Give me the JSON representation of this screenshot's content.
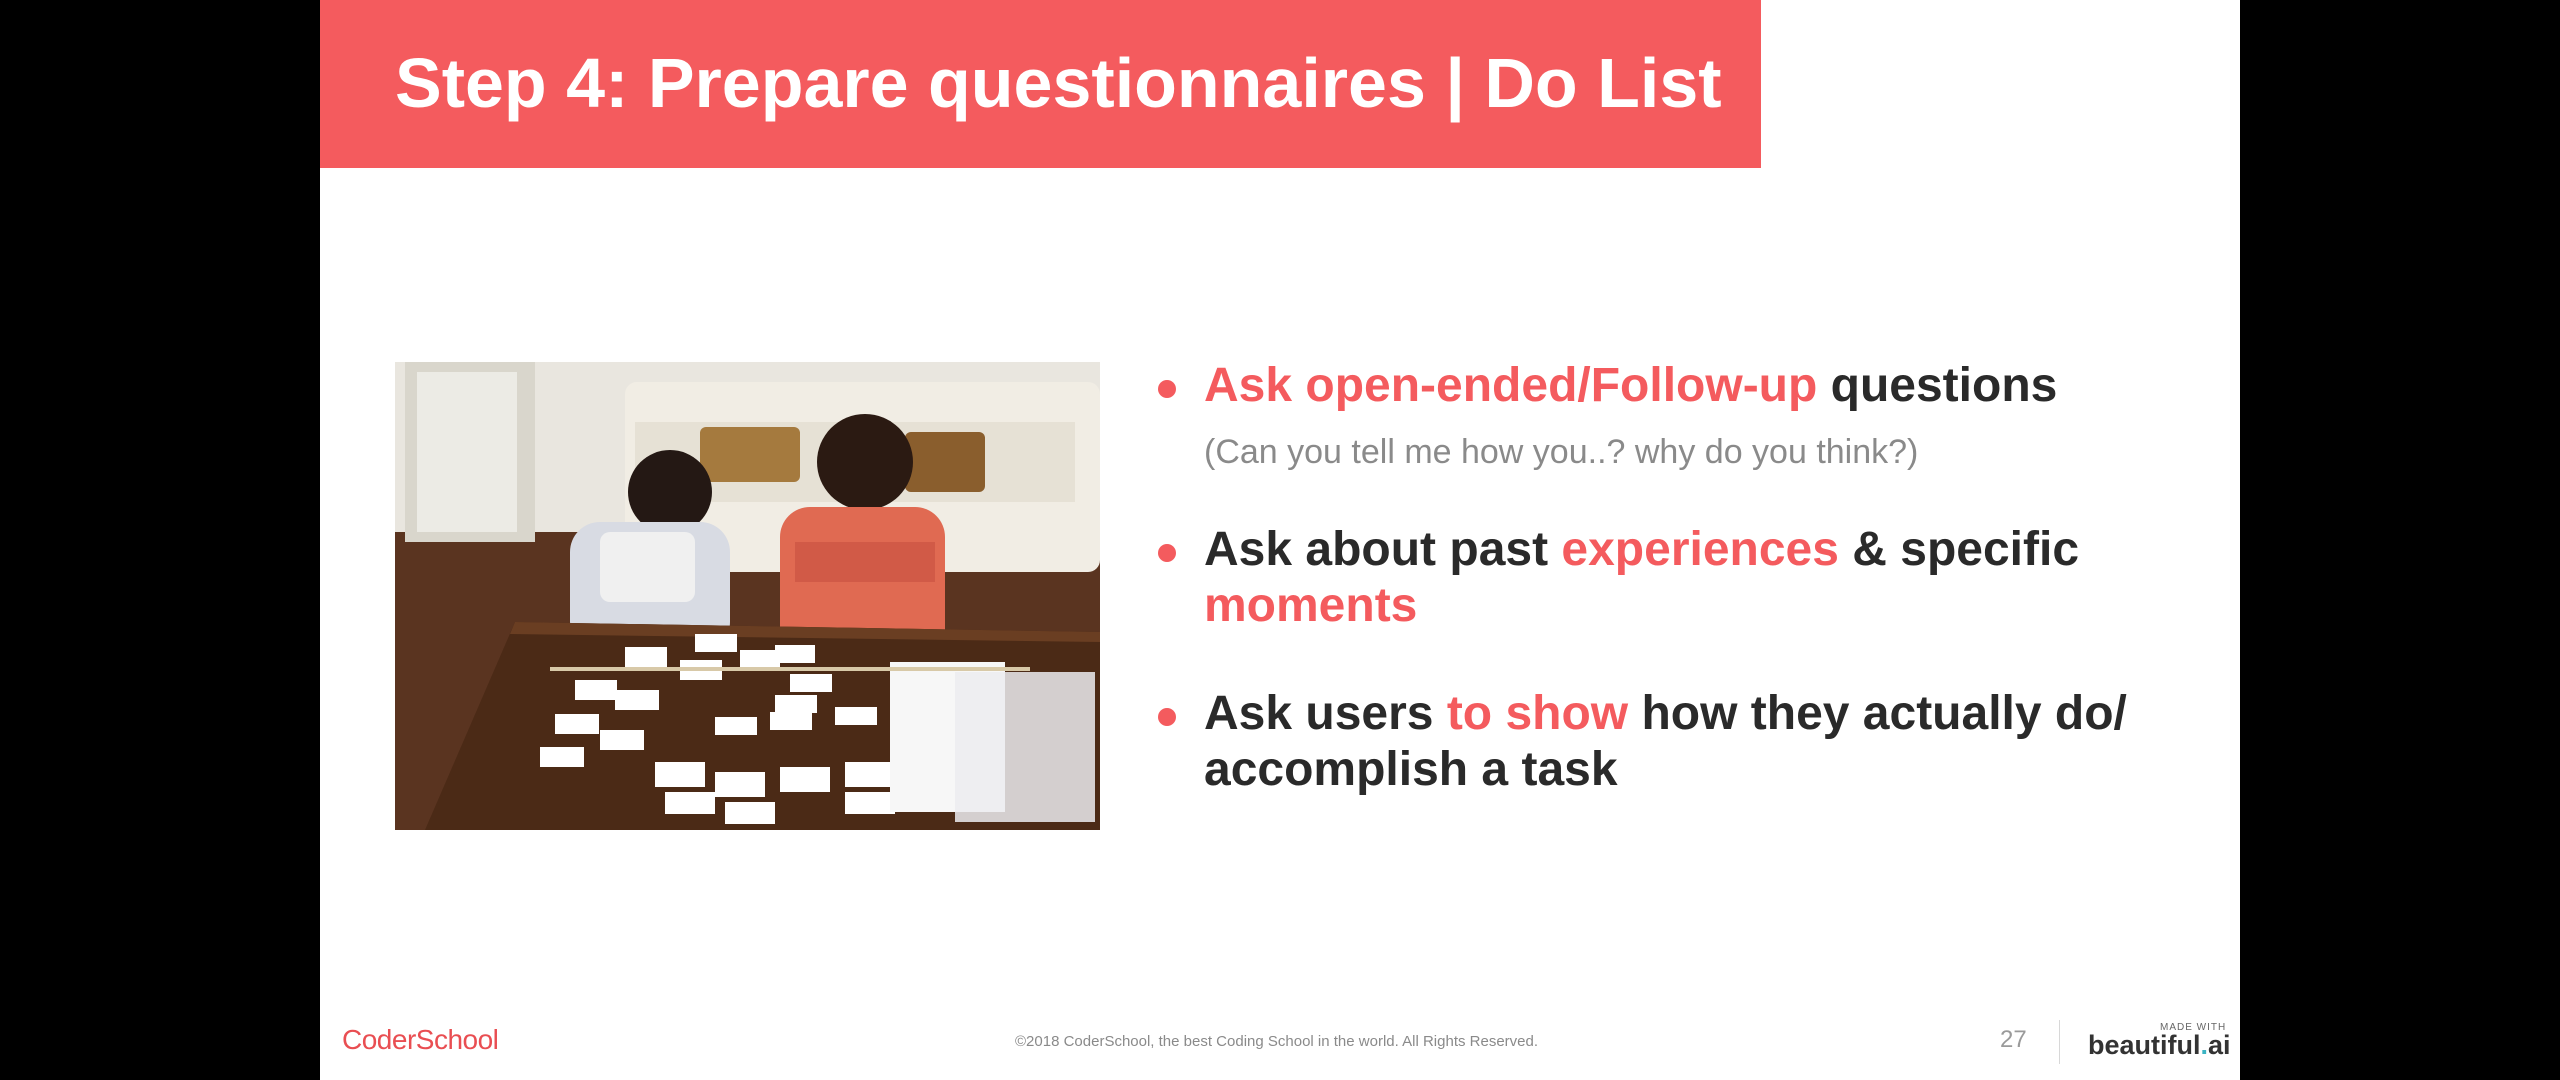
{
  "slide": {
    "title": "Step 4: Prepare questionnaires | Do List",
    "bullets": [
      {
        "parts": [
          {
            "text": "Ask open-ended/Follow-up",
            "highlight": true
          },
          {
            "text": " questions",
            "highlight": false
          }
        ],
        "sub": "(Can you tell me how you..? why do you think?)"
      },
      {
        "parts": [
          {
            "text": "Ask about past ",
            "highlight": false
          },
          {
            "text": "experiences",
            "highlight": true
          },
          {
            "text": " & specific ",
            "highlight": false
          },
          {
            "text": "moments",
            "highlight": true
          }
        ]
      },
      {
        "parts": [
          {
            "text": "Ask users ",
            "highlight": false
          },
          {
            "text": "to show",
            "highlight": true
          },
          {
            "text": " how they actually do/ accomplish a task",
            "highlight": false
          }
        ]
      }
    ]
  },
  "footer": {
    "logo": "CoderSchool",
    "copyright": "©2018 CoderSchool, the best Coding School in the world. All Rights Reserved.",
    "page_number": "27",
    "made_with": "MADE WITH",
    "brand_main": "beautiful",
    "brand_dot": ".",
    "brand_ai": "ai"
  },
  "colors": {
    "accent": "#f45b5e",
    "text": "#2a2a2a",
    "muted": "#8a8a8a"
  }
}
